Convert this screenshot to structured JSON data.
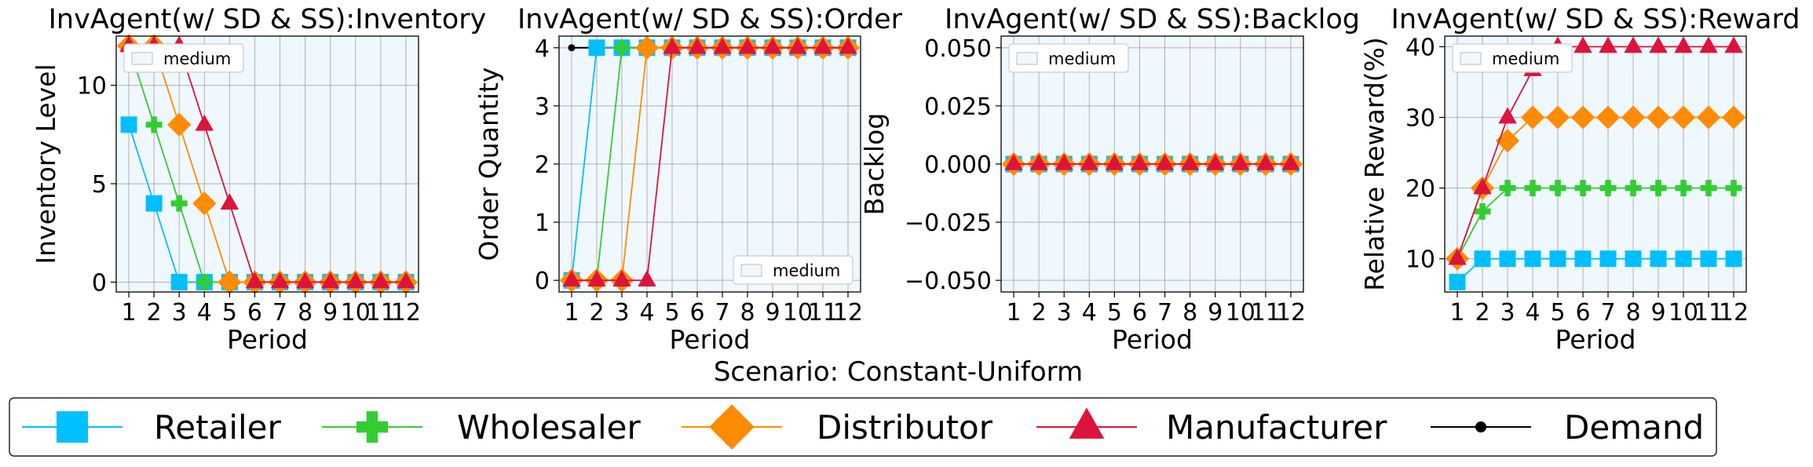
{
  "figure": {
    "suptitle": "Scenario: Constant-Uniform",
    "legend": [
      "Retailer",
      "Wholesaler",
      "Distributor",
      "Manufacturer",
      "Demand"
    ],
    "colors": {
      "Retailer": "#00bfff",
      "Wholesaler": "#32cd32",
      "Distributor": "#ff8c00",
      "Manufacturer": "#dc143c",
      "Demand": "#000000",
      "plot_bg": "#f0f8ff",
      "grid": "#b0b0b0"
    },
    "markers": {
      "Retailer": "square",
      "Wholesaler": "plus",
      "Distributor": "diamond",
      "Manufacturer": "triangle",
      "Demand": "dot"
    }
  },
  "chart_data": [
    {
      "type": "line",
      "title": "InvAgent(w/ SD & SS):Inventory",
      "xlabel": "Period",
      "ylabel": "Inventory Level",
      "x": [
        1,
        2,
        3,
        4,
        5,
        6,
        7,
        8,
        9,
        10,
        11,
        12
      ],
      "xticks": [
        "1",
        "2",
        "3",
        "4",
        "5",
        "6",
        "7",
        "8",
        "9",
        "10",
        "11",
        "12"
      ],
      "ylim": [
        -0.5,
        12.5
      ],
      "yticks": [
        "0",
        "5",
        "10"
      ],
      "ytick_values": [
        0,
        5,
        10
      ],
      "grid": true,
      "legend": {
        "label": "medium",
        "position": "upper-left"
      },
      "series": [
        {
          "name": "Retailer",
          "values": [
            8,
            4,
            0,
            0,
            0,
            0,
            0,
            0,
            0,
            0,
            0,
            0
          ]
        },
        {
          "name": "Wholesaler",
          "values": [
            12,
            8,
            4,
            0,
            0,
            0,
            0,
            0,
            0,
            0,
            0,
            0
          ]
        },
        {
          "name": "Distributor",
          "values": [
            12,
            12,
            8,
            4,
            0,
            0,
            0,
            0,
            0,
            0,
            0,
            0
          ]
        },
        {
          "name": "Manufacturer",
          "values": [
            12,
            12,
            12,
            8,
            4,
            0,
            0,
            0,
            0,
            0,
            0,
            0
          ]
        }
      ]
    },
    {
      "type": "line",
      "title": "InvAgent(w/ SD & SS):Order",
      "xlabel": "Period",
      "ylabel": "Order Quantity",
      "x": [
        1,
        2,
        3,
        4,
        5,
        6,
        7,
        8,
        9,
        10,
        11,
        12
      ],
      "xticks": [
        "1",
        "2",
        "3",
        "4",
        "5",
        "6",
        "7",
        "8",
        "9",
        "10",
        "11",
        "12"
      ],
      "ylim": [
        -0.2,
        4.2
      ],
      "yticks": [
        "0",
        "1",
        "2",
        "3",
        "4"
      ],
      "ytick_values": [
        0,
        1,
        2,
        3,
        4
      ],
      "grid": true,
      "legend": {
        "label": "medium",
        "position": "lower-right"
      },
      "series": [
        {
          "name": "Retailer",
          "values": [
            0,
            4,
            4,
            4,
            4,
            4,
            4,
            4,
            4,
            4,
            4,
            4
          ]
        },
        {
          "name": "Wholesaler",
          "values": [
            0,
            0,
            4,
            4,
            4,
            4,
            4,
            4,
            4,
            4,
            4,
            4
          ]
        },
        {
          "name": "Distributor",
          "values": [
            0,
            0,
            0,
            4,
            4,
            4,
            4,
            4,
            4,
            4,
            4,
            4
          ]
        },
        {
          "name": "Manufacturer",
          "values": [
            0,
            0,
            0,
            0,
            4,
            4,
            4,
            4,
            4,
            4,
            4,
            4
          ]
        },
        {
          "name": "Demand",
          "values": [
            4,
            4,
            4,
            4,
            4,
            4,
            4,
            4,
            4,
            4,
            4,
            4
          ]
        }
      ]
    },
    {
      "type": "line",
      "title": "InvAgent(w/ SD & SS):Backlog",
      "xlabel": "Period",
      "ylabel": "Backlog",
      "x": [
        1,
        2,
        3,
        4,
        5,
        6,
        7,
        8,
        9,
        10,
        11,
        12
      ],
      "xticks": [
        "1",
        "2",
        "3",
        "4",
        "5",
        "6",
        "7",
        "8",
        "9",
        "10",
        "11",
        "12"
      ],
      "ylim": [
        -0.055,
        0.055
      ],
      "yticks": [
        "−0.050",
        "−0.025",
        "0.000",
        "0.025",
        "0.050"
      ],
      "ytick_values": [
        -0.05,
        -0.025,
        0,
        0.025,
        0.05
      ],
      "grid": true,
      "legend": {
        "label": "medium",
        "position": "upper-left"
      },
      "series": [
        {
          "name": "Retailer",
          "values": [
            0,
            0,
            0,
            0,
            0,
            0,
            0,
            0,
            0,
            0,
            0,
            0
          ]
        },
        {
          "name": "Wholesaler",
          "values": [
            0,
            0,
            0,
            0,
            0,
            0,
            0,
            0,
            0,
            0,
            0,
            0
          ]
        },
        {
          "name": "Distributor",
          "values": [
            0,
            0,
            0,
            0,
            0,
            0,
            0,
            0,
            0,
            0,
            0,
            0
          ]
        },
        {
          "name": "Manufacturer",
          "values": [
            0,
            0,
            0,
            0,
            0,
            0,
            0,
            0,
            0,
            0,
            0,
            0
          ]
        }
      ]
    },
    {
      "type": "line",
      "title": "InvAgent(w/ SD & SS):Reward",
      "xlabel": "Period",
      "ylabel": "Relative Reward(%)",
      "x": [
        1,
        2,
        3,
        4,
        5,
        6,
        7,
        8,
        9,
        10,
        11,
        12
      ],
      "xticks": [
        "1",
        "2",
        "3",
        "4",
        "5",
        "6",
        "7",
        "8",
        "9",
        "10",
        "11",
        "12"
      ],
      "ylim": [
        5.3,
        41.5
      ],
      "yticks": [
        "10",
        "20",
        "30",
        "40"
      ],
      "ytick_values": [
        10,
        20,
        30,
        40
      ],
      "grid": true,
      "legend": {
        "label": "medium",
        "position": "upper-left"
      },
      "series": [
        {
          "name": "Retailer",
          "values": [
            6.7,
            10,
            10,
            10,
            10,
            10,
            10,
            10,
            10,
            10,
            10,
            10
          ]
        },
        {
          "name": "Wholesaler",
          "values": [
            10,
            16.7,
            20,
            20,
            20,
            20,
            20,
            20,
            20,
            20,
            20,
            20
          ]
        },
        {
          "name": "Distributor",
          "values": [
            10,
            20,
            26.7,
            30,
            30,
            30,
            30,
            30,
            30,
            30,
            30,
            30
          ]
        },
        {
          "name": "Manufacturer",
          "values": [
            10,
            20,
            30,
            36.7,
            40,
            40,
            40,
            40,
            40,
            40,
            40,
            40
          ]
        }
      ]
    }
  ]
}
